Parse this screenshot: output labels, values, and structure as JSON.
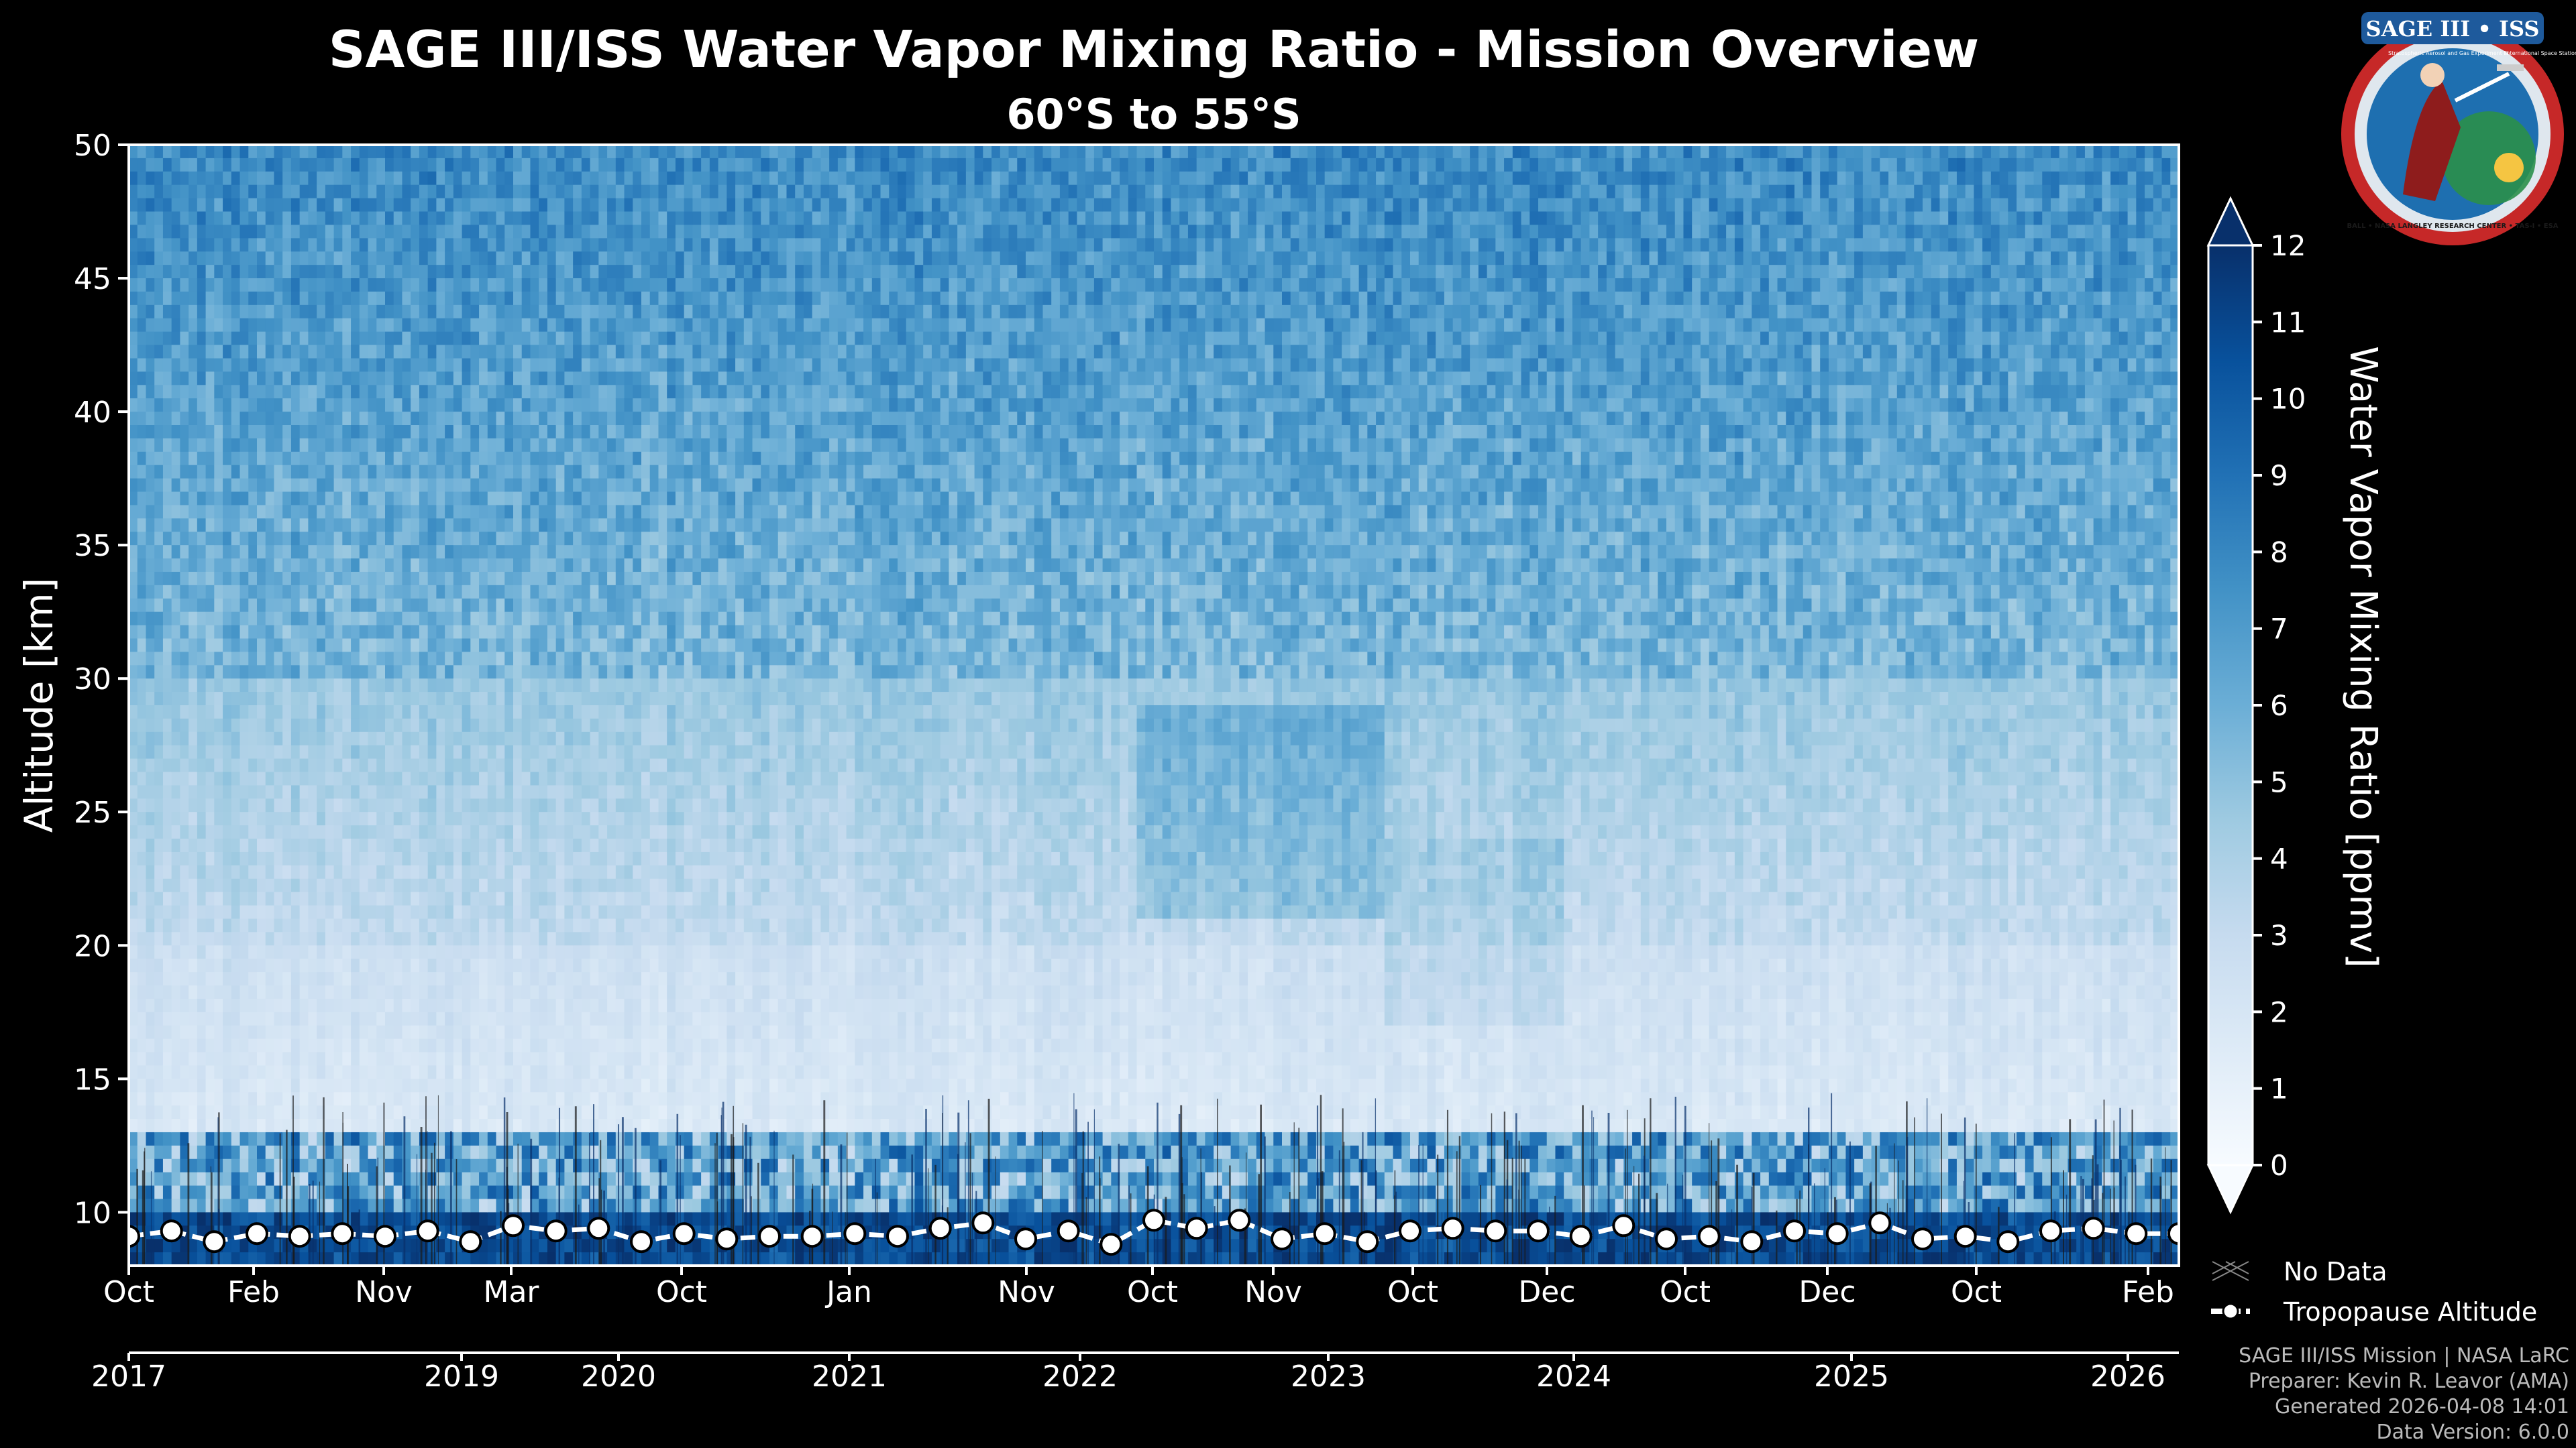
{
  "chart_data": {
    "type": "heatmap",
    "title": "SAGE III/ISS Water Vapor Mixing Ratio - Mission Overview",
    "subtitle": "60°S to 55°S",
    "ylabel": "Altitude [km]",
    "ylim": [
      8,
      50
    ],
    "y_ticks": [
      "10",
      "15",
      "20",
      "25",
      "30",
      "35",
      "40",
      "45",
      "50"
    ],
    "month_ticks": [
      "Oct",
      "Feb",
      "Nov",
      "Mar",
      "Oct",
      "Jan",
      "Nov",
      "Oct",
      "Nov",
      "Oct",
      "Dec",
      "Oct",
      "Dec",
      "Oct",
      "Feb"
    ],
    "year_ticks": [
      "2017",
      "2019",
      "2020",
      "2021",
      "2022",
      "2023",
      "2024",
      "2025",
      "2026"
    ],
    "colorbar": {
      "label": "Water Vapor Mixing Ratio [ppmv]",
      "min": 0,
      "max": 12,
      "ticks": [
        "0",
        "1",
        "2",
        "3",
        "4",
        "5",
        "6",
        "7",
        "8",
        "9",
        "10",
        "11",
        "12"
      ],
      "colors": [
        "#f7fbff",
        "#deebf7",
        "#c6dbef",
        "#9ecae1",
        "#6baed6",
        "#4292c6",
        "#2171b5",
        "#08519c",
        "#08306b"
      ]
    },
    "tropopause": {
      "name": "Tropopause Altitude",
      "values_km": [
        9.1,
        9.3,
        8.9,
        9.2,
        9.1,
        9.2,
        9.1,
        9.3,
        8.9,
        9.5,
        9.3,
        9.4,
        8.9,
        9.2,
        9.0,
        9.1,
        9.1,
        9.2,
        9.1,
        9.4,
        9.6,
        9.0,
        9.3,
        8.8,
        9.7,
        9.4,
        9.7,
        9.0,
        9.2,
        8.9,
        9.3,
        9.4,
        9.3,
        9.3,
        9.1,
        9.5,
        9.0,
        9.1,
        8.9,
        9.3,
        9.2,
        9.6,
        9.0,
        9.1,
        8.9,
        9.3,
        9.4,
        9.2,
        9.2
      ]
    },
    "legend": {
      "no_data": "No Data",
      "tropopause": "Tropopause Altitude",
      "position": "bottom-right"
    }
  },
  "logo": {
    "name": "SAGE III • ISS",
    "left_text": "Stratospheric Aerosol and Gas Experiment III",
    "right_text": "International Space Station",
    "ring_text": "BALL • NASA LANGLEY RESEARCH CENTER • TAS-I • ESA"
  },
  "footer": {
    "line1": "SAGE III/ISS Mission | NASA LaRC",
    "line2": "Preparer: Kevin R. Leavor (AMA)",
    "line3": "Generated 2026-04-08 14:01",
    "line4": "Data Version: 6.0.0"
  },
  "colors": {
    "background": "#000000",
    "tropopause_line": "#ffffff"
  }
}
